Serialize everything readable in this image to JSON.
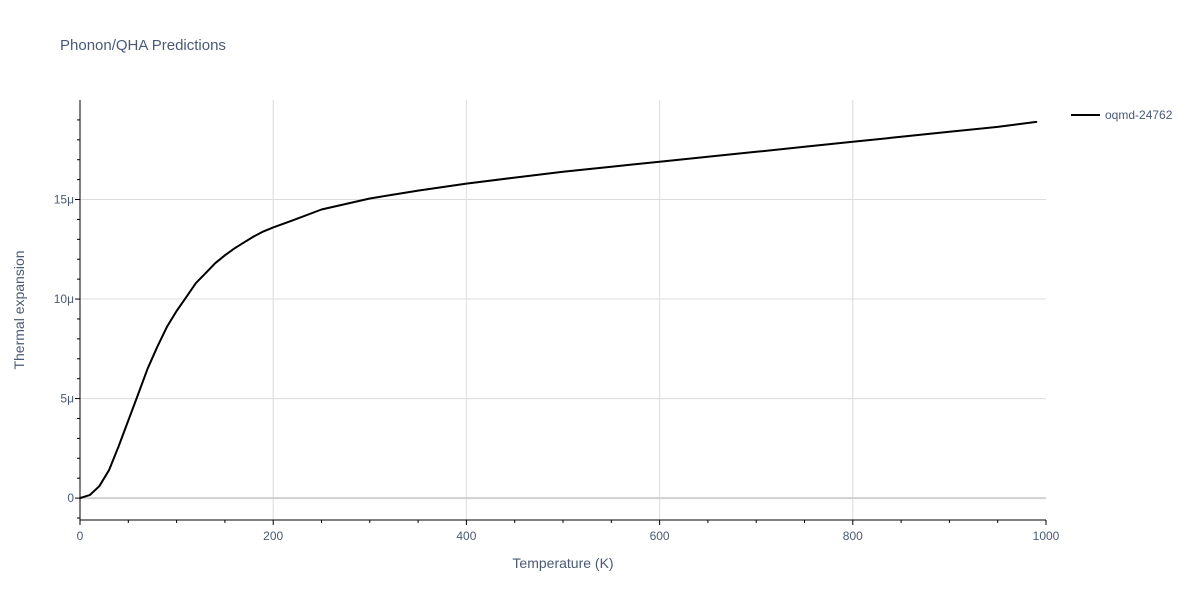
{
  "chart_data": {
    "type": "line",
    "title": "Phonon/QHA Predictions",
    "xlabel": "Temperature (K)",
    "ylabel": "Thermal expansion",
    "xlim": [
      0,
      1000
    ],
    "ylim": [
      -1.1e-06,
      2e-05
    ],
    "x_ticks": [
      0,
      200,
      400,
      600,
      800,
      1000
    ],
    "x_tick_labels": [
      "0",
      "200",
      "400",
      "600",
      "800",
      "1000"
    ],
    "y_ticks": [
      0,
      5e-06,
      1e-05,
      1.5e-05
    ],
    "y_tick_labels": [
      "0",
      "5μ",
      "10μ",
      "15μ"
    ],
    "grid": true,
    "legend_position": "top-right",
    "series": [
      {
        "name": "oqmd-24762",
        "color": "#000000",
        "x": [
          0,
          10,
          20,
          30,
          40,
          50,
          60,
          70,
          80,
          90,
          100,
          110,
          120,
          130,
          140,
          150,
          160,
          170,
          180,
          190,
          200,
          220,
          250,
          300,
          350,
          400,
          450,
          500,
          550,
          600,
          650,
          700,
          750,
          800,
          850,
          900,
          950,
          990
        ],
        "y": [
          0,
          1.5e-07,
          6e-07,
          1.4e-06,
          2.6e-06,
          3.9e-06,
          5.2e-06,
          6.5e-06,
          7.6e-06,
          8.6e-06,
          9.4e-06,
          1.01e-05,
          1.08e-05,
          1.13e-05,
          1.18e-05,
          1.22e-05,
          1.255e-05,
          1.285e-05,
          1.315e-05,
          1.34e-05,
          1.36e-05,
          1.395e-05,
          1.45e-05,
          1.505e-05,
          1.545e-05,
          1.58e-05,
          1.61e-05,
          1.64e-05,
          1.665e-05,
          1.69e-05,
          1.715e-05,
          1.74e-05,
          1.765e-05,
          1.79e-05,
          1.815e-05,
          1.84e-05,
          1.865e-05,
          1.89e-05
        ]
      }
    ]
  }
}
